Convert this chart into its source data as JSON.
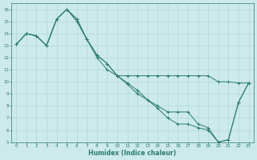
{
  "xlabel": "Humidex (Indice chaleur)",
  "xlim": [
    -0.5,
    23.5
  ],
  "ylim": [
    5,
    16.5
  ],
  "xticks": [
    0,
    1,
    2,
    3,
    4,
    5,
    6,
    7,
    8,
    9,
    10,
    11,
    12,
    13,
    14,
    15,
    16,
    17,
    18,
    19,
    20,
    21,
    22,
    23
  ],
  "yticks": [
    5,
    6,
    7,
    8,
    9,
    10,
    11,
    12,
    13,
    14,
    15,
    16
  ],
  "bg_color": "#cceaea",
  "grid_color": "#b0d8d8",
  "line_color": "#2d7a6a",
  "series1": [
    [
      0,
      13.1
    ],
    [
      1,
      14.0
    ],
    [
      2,
      13.8
    ],
    [
      3,
      13.0
    ],
    [
      4,
      15.2
    ],
    [
      5,
      16.0
    ],
    [
      6,
      15.2
    ],
    [
      7,
      13.5
    ],
    [
      8,
      12.2
    ],
    [
      9,
      11.5
    ],
    [
      10,
      10.5
    ],
    [
      11,
      10.5
    ],
    [
      12,
      10.5
    ],
    [
      13,
      10.5
    ],
    [
      14,
      10.5
    ],
    [
      15,
      10.5
    ],
    [
      16,
      10.5
    ],
    [
      17,
      10.5
    ],
    [
      18,
      10.5
    ],
    [
      19,
      10.5
    ],
    [
      20,
      10.0
    ],
    [
      21,
      10.0
    ],
    [
      22,
      9.9
    ],
    [
      23,
      9.9
    ]
  ],
  "series2": [
    [
      0,
      13.1
    ],
    [
      1,
      14.0
    ],
    [
      2,
      13.8
    ],
    [
      3,
      13.0
    ],
    [
      4,
      15.2
    ],
    [
      5,
      16.0
    ],
    [
      6,
      15.2
    ],
    [
      7,
      13.5
    ],
    [
      8,
      12.2
    ],
    [
      9,
      11.5
    ],
    [
      10,
      10.5
    ],
    [
      11,
      9.9
    ],
    [
      12,
      9.3
    ],
    [
      13,
      8.5
    ],
    [
      14,
      8.0
    ],
    [
      15,
      7.5
    ],
    [
      16,
      7.5
    ],
    [
      17,
      7.5
    ],
    [
      18,
      6.5
    ],
    [
      19,
      6.2
    ],
    [
      20,
      5.0
    ],
    [
      21,
      5.2
    ],
    [
      22,
      8.3
    ],
    [
      23,
      9.9
    ]
  ],
  "series3": [
    [
      0,
      13.1
    ],
    [
      1,
      14.0
    ],
    [
      2,
      13.8
    ],
    [
      3,
      13.0
    ],
    [
      4,
      15.2
    ],
    [
      5,
      16.0
    ],
    [
      6,
      15.0
    ],
    [
      7,
      13.5
    ],
    [
      8,
      12.0
    ],
    [
      9,
      11.0
    ],
    [
      10,
      10.5
    ],
    [
      11,
      9.8
    ],
    [
      12,
      9.0
    ],
    [
      13,
      8.5
    ],
    [
      14,
      7.8
    ],
    [
      15,
      7.0
    ],
    [
      16,
      6.5
    ],
    [
      17,
      6.5
    ],
    [
      18,
      6.2
    ],
    [
      19,
      6.0
    ],
    [
      20,
      5.0
    ],
    [
      21,
      5.2
    ],
    [
      22,
      8.3
    ],
    [
      23,
      9.9
    ]
  ]
}
